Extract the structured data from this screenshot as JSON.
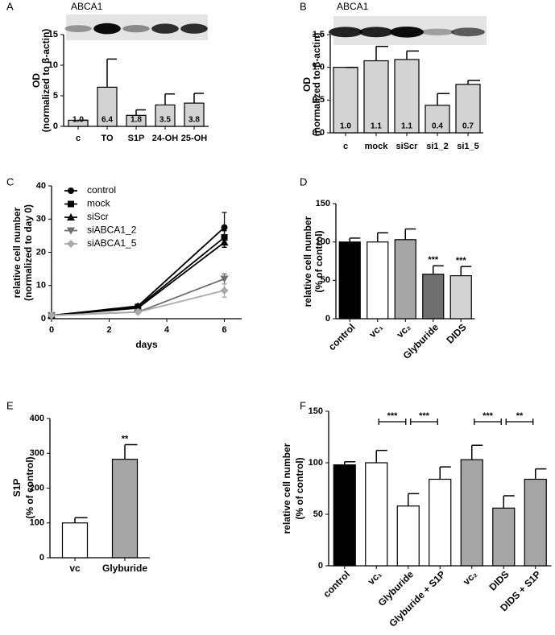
{
  "chart_data": [
    {
      "type": "bar",
      "panel": "A",
      "title": "ABCA1",
      "ylabel": [
        "OD",
        "(normalized to β-actin)"
      ],
      "categories": [
        "c",
        "TO",
        "S1P",
        "24-OH",
        "25-OH"
      ],
      "values": [
        1.0,
        6.4,
        1.8,
        3.5,
        3.8
      ],
      "value_labels": [
        "1.0",
        "6.4",
        "1.8",
        "3.5",
        "3.8"
      ],
      "errors": [
        0,
        4.6,
        0.9,
        1.8,
        1.6
      ],
      "color": "#d3d3d3",
      "ylim": [
        0,
        15
      ],
      "yticks": [
        0,
        5,
        10,
        15
      ]
    },
    {
      "type": "bar",
      "panel": "B",
      "title": "ABCA1",
      "ylabel": [
        "OD",
        "(normalized to β-actin)"
      ],
      "categories": [
        "c",
        "mock",
        "siScr",
        "si1_2",
        "si1_5"
      ],
      "values": [
        1.0,
        1.1,
        1.12,
        0.42,
        0.74
      ],
      "value_labels": [
        "1.0",
        "1.1",
        "1.1",
        "0.4",
        "0.7"
      ],
      "errors": [
        0,
        0.22,
        0.13,
        0.18,
        0.06
      ],
      "color": "#d3d3d3",
      "ylim": [
        0,
        1.5
      ],
      "yticks": [
        {
          "value": 0,
          "label": "0.0"
        },
        {
          "value": 0.5,
          "label": "0.5"
        },
        {
          "value": 1.0,
          "label": "1.0"
        },
        {
          "value": 1.5,
          "label": "1.5"
        }
      ]
    },
    {
      "type": "line",
      "panel": "C",
      "xlabel": "days",
      "ylabel": [
        "relative cell number",
        "(normalized to day 0)"
      ],
      "x": [
        0,
        3,
        6
      ],
      "series": [
        {
          "name": "control",
          "color": "#000000",
          "marker": "circle",
          "values": [
            1,
            3.8,
            27.5
          ],
          "errors": [
            0,
            0.5,
            4.5
          ]
        },
        {
          "name": "mock",
          "color": "#000000",
          "marker": "square",
          "values": [
            1,
            3.5,
            24.5
          ],
          "errors": [
            0,
            0.4,
            2
          ]
        },
        {
          "name": "siScr",
          "color": "#000000",
          "marker": "triangle-up",
          "values": [
            1,
            3.2,
            23
          ],
          "errors": [
            0,
            0.3,
            1.5
          ]
        },
        {
          "name": "siABCA1_2",
          "color": "#6e6e6e",
          "marker": "triangle-down",
          "values": [
            1,
            2,
            12
          ],
          "errors": [
            0,
            0.3,
            1.5
          ]
        },
        {
          "name": "siABCA1_5",
          "color": "#aaaaaa",
          "marker": "diamond",
          "values": [
            1,
            2,
            8.5
          ],
          "errors": [
            0,
            0.3,
            2
          ]
        }
      ],
      "xlim": [
        0,
        6.6
      ],
      "xticks": [
        0,
        2,
        4,
        6
      ],
      "ylim": [
        0,
        40
      ],
      "yticks": [
        0,
        10,
        20,
        30,
        40
      ]
    },
    {
      "type": "bar",
      "panel": "D",
      "ylabel": [
        "relative cell number",
        "(% of control)"
      ],
      "categories": [
        "control",
        "vc₁",
        "vc₂",
        "Glyburide",
        "DIDS"
      ],
      "values": [
        100,
        100,
        103,
        58,
        56
      ],
      "errors": [
        5,
        12,
        14,
        11,
        12
      ],
      "colors": [
        "#000000",
        "#ffffff",
        "#a6a6a6",
        "#707070",
        "#d3d3d3"
      ],
      "annotations": [
        null,
        null,
        null,
        "***",
        "***"
      ],
      "ylim": [
        0,
        150
      ],
      "yticks": [
        0,
        50,
        100,
        150
      ]
    },
    {
      "type": "bar",
      "panel": "E",
      "ylabel": [
        "S1P",
        "(% of control)"
      ],
      "categories": [
        "vc",
        "Glyburide"
      ],
      "values": [
        100,
        283
      ],
      "errors": [
        15,
        42
      ],
      "colors": [
        "#ffffff",
        "#a6a6a6"
      ],
      "annotations": [
        null,
        "**"
      ],
      "ylim": [
        0,
        400
      ],
      "yticks": [
        0,
        100,
        200,
        300,
        400
      ]
    },
    {
      "type": "bar",
      "panel": "F",
      "ylabel": [
        "relative cell number",
        "(% of control)"
      ],
      "categories": [
        "control",
        "vc₁",
        "Glyburide",
        "Glyburide + S1P",
        "vc₂",
        "DIDS",
        "DIDS + S1P"
      ],
      "values": [
        98,
        100,
        58,
        84,
        103,
        56,
        84
      ],
      "errors": [
        3,
        12,
        12,
        12,
        14,
        12,
        10
      ],
      "colors": [
        "#000000",
        "#ffffff",
        "#ffffff",
        "#ffffff",
        "#a6a6a6",
        "#a6a6a6",
        "#a6a6a6"
      ],
      "brackets": [
        "***",
        "***",
        "***",
        "**"
      ],
      "ylim": [
        0,
        150
      ],
      "yticks": [
        0,
        50,
        100,
        150
      ]
    }
  ]
}
